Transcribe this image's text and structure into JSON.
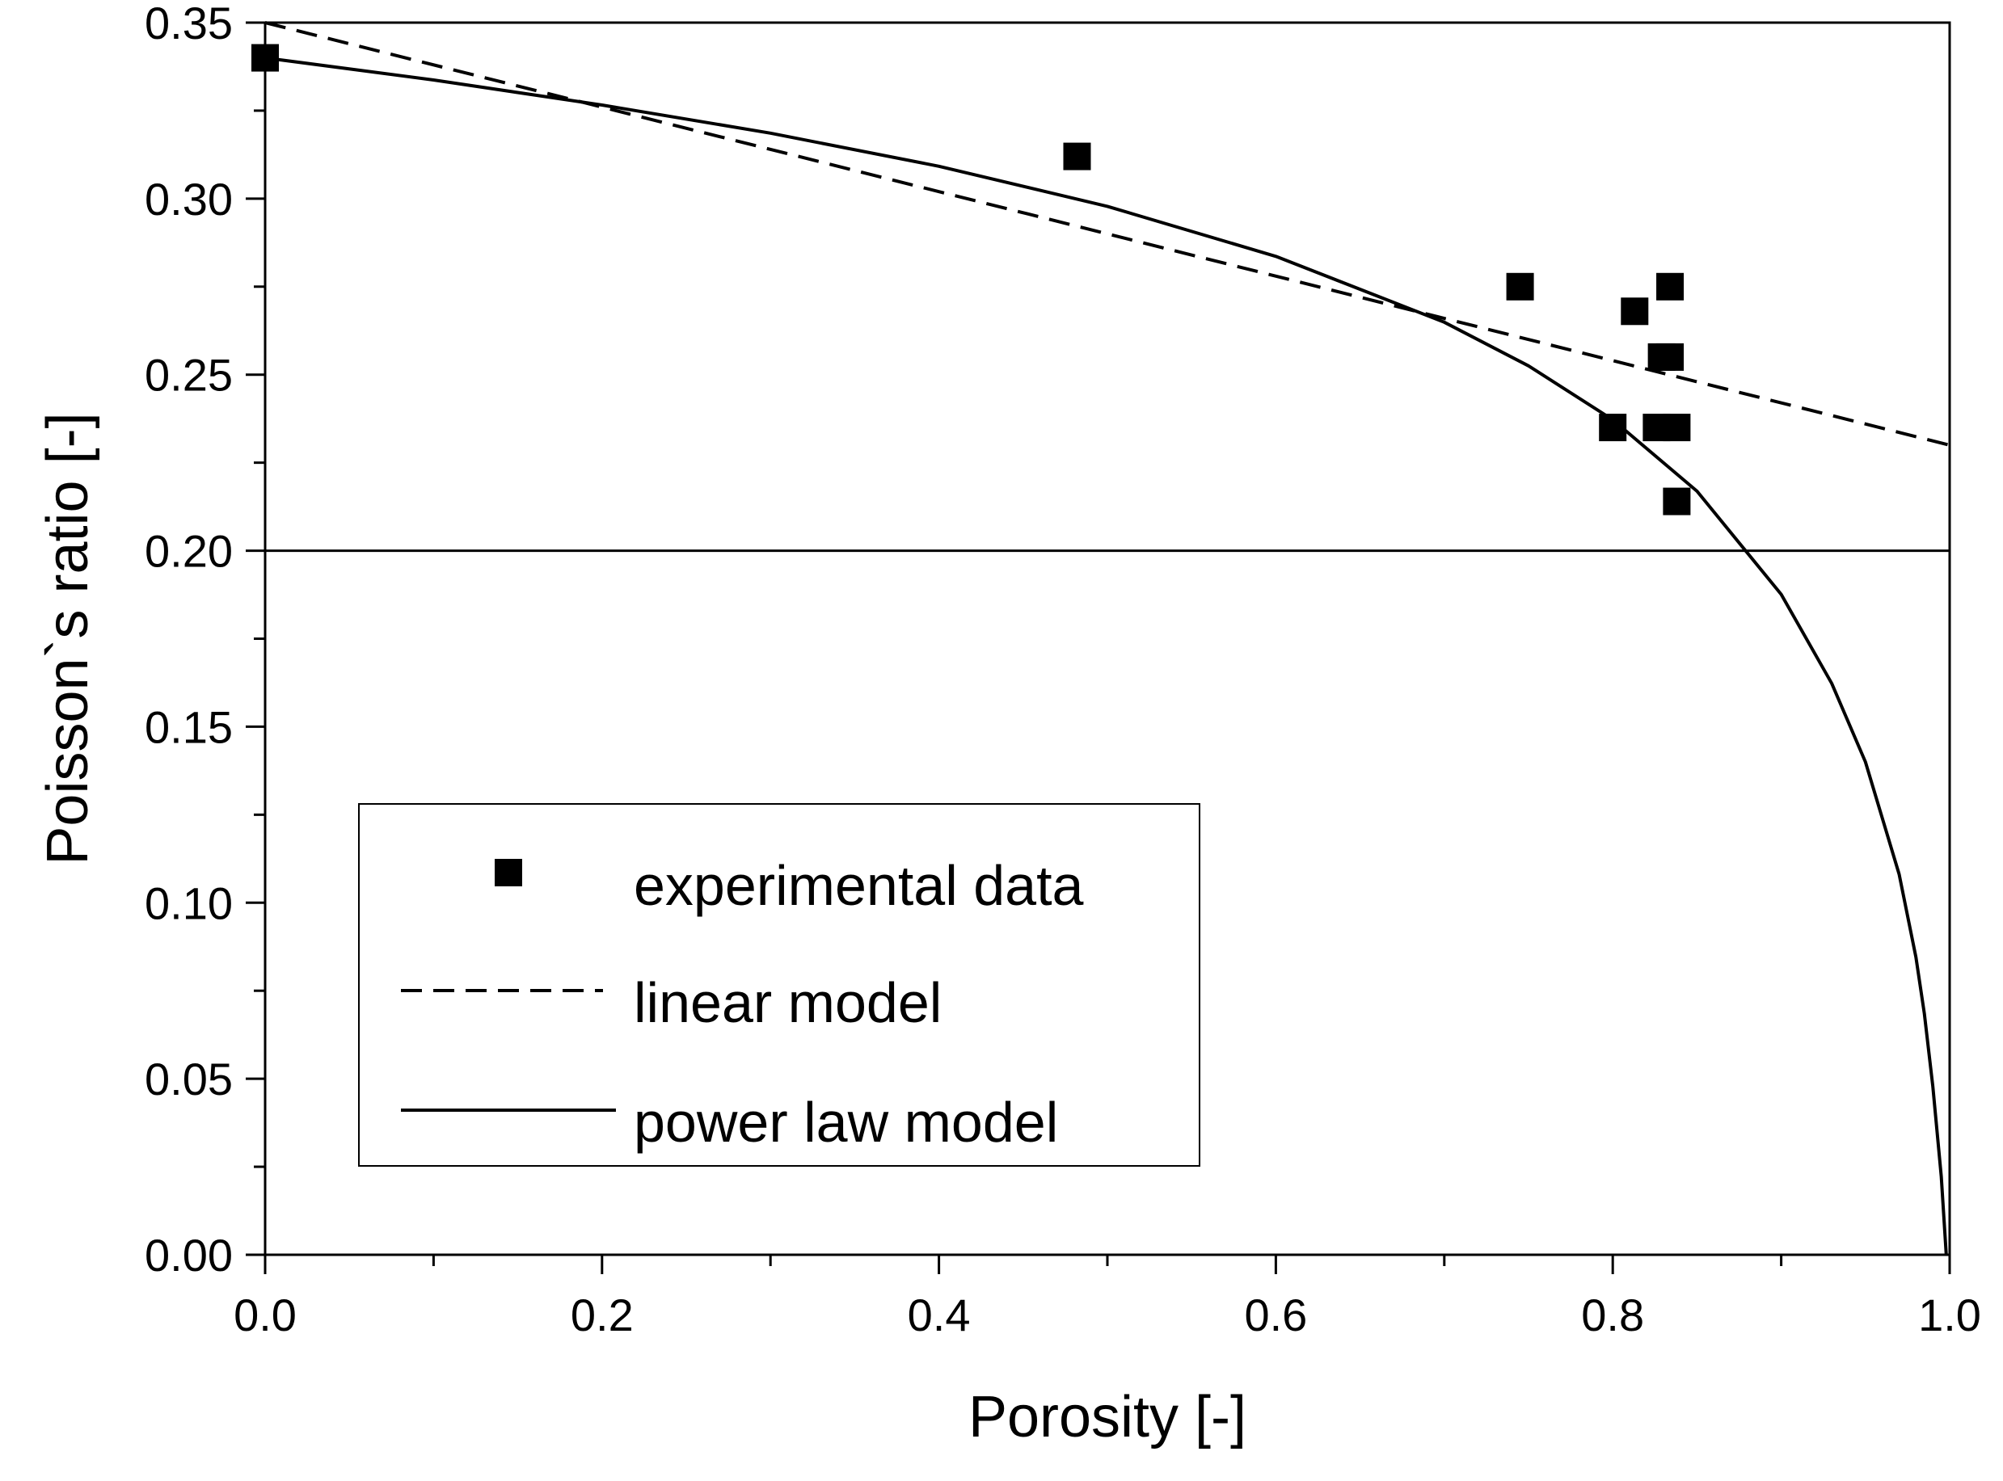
{
  "chart_data": {
    "type": "scatter",
    "title": "",
    "xlabel": "Porosity [-]",
    "ylabel": "Poisson`s ratio [-]",
    "xlim": [
      0.0,
      1.0
    ],
    "ylim": [
      0.0,
      0.35
    ],
    "x_ticks": [
      0.0,
      0.2,
      0.4,
      0.6,
      0.8,
      1.0
    ],
    "x_tick_labels": [
      "0.0",
      "0.2",
      "0.4",
      "0.6",
      "0.8",
      "1.0"
    ],
    "y_ticks": [
      0.0,
      0.05,
      0.1,
      0.15,
      0.2,
      0.25,
      0.3,
      0.35
    ],
    "y_tick_labels": [
      "0.00",
      "0.05",
      "0.10",
      "0.15",
      "0.20",
      "0.25",
      "0.30",
      "0.35"
    ],
    "grid": false,
    "legend_position": "lower-left",
    "reference_line_y": 0.2,
    "series": [
      {
        "name": "experimental data",
        "kind": "markers",
        "marker": "square",
        "color": "#000000",
        "points": [
          [
            0.0,
            0.34
          ],
          [
            0.482,
            0.312
          ],
          [
            0.745,
            0.275
          ],
          [
            0.813,
            0.268
          ],
          [
            0.834,
            0.275
          ],
          [
            0.829,
            0.255
          ],
          [
            0.834,
            0.255
          ],
          [
            0.8,
            0.235
          ],
          [
            0.826,
            0.235
          ],
          [
            0.838,
            0.235
          ],
          [
            0.838,
            0.214
          ]
        ]
      },
      {
        "name": "linear model",
        "kind": "line",
        "style": "dashed",
        "color": "#000000",
        "points": [
          [
            0.0,
            0.35
          ],
          [
            1.0,
            0.23
          ]
        ]
      },
      {
        "name": "power law model",
        "kind": "line",
        "style": "solid",
        "color": "#000000",
        "points": [
          [
            0.0,
            0.34
          ],
          [
            0.1,
            0.3337
          ],
          [
            0.2,
            0.3266
          ],
          [
            0.3,
            0.3186
          ],
          [
            0.4,
            0.3092
          ],
          [
            0.5,
            0.2978
          ],
          [
            0.6,
            0.2836
          ],
          [
            0.7,
            0.2649
          ],
          [
            0.75,
            0.2525
          ],
          [
            0.8,
            0.2372
          ],
          [
            0.85,
            0.2169
          ],
          [
            0.9,
            0.1876
          ],
          [
            0.93,
            0.1623
          ],
          [
            0.95,
            0.14
          ],
          [
            0.97,
            0.1081
          ],
          [
            0.98,
            0.0845
          ],
          [
            0.985,
            0.0685
          ],
          [
            0.99,
            0.0478
          ],
          [
            0.995,
            0.0223
          ],
          [
            0.998,
            0.0
          ]
        ]
      }
    ]
  }
}
